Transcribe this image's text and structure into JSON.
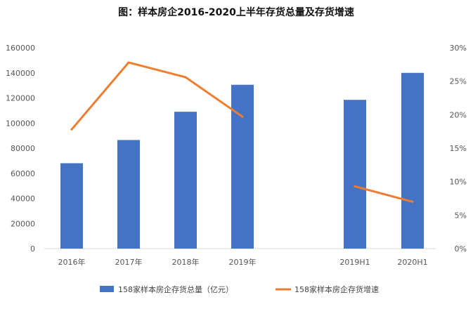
{
  "chart_data": {
    "type": "bar",
    "title": "图：样本房企2016-2020上半年存货总量及存货增速",
    "categories": [
      "2016年",
      "2017年",
      "2018年",
      "2019年",
      "",
      "2019H1",
      "2020H1"
    ],
    "series": [
      {
        "name": "158家样本房企存货总量（亿元）",
        "type": "bar",
        "axis": "left",
        "color": "#4472C4",
        "values": [
          68000,
          86500,
          109000,
          130500,
          null,
          118500,
          140000
        ]
      },
      {
        "name": "158家样本房企存货增速",
        "type": "line",
        "axis": "right",
        "color": "#ED7D31",
        "values": [
          17.8,
          27.8,
          25.6,
          19.7,
          null,
          9.3,
          7.0
        ]
      }
    ],
    "y_left": {
      "min": 0,
      "max": 160000,
      "ticks": [
        0,
        20000,
        40000,
        60000,
        80000,
        100000,
        120000,
        140000,
        160000
      ]
    },
    "y_right": {
      "min": 0,
      "max": 30,
      "ticks": [
        0,
        5,
        10,
        15,
        20,
        25,
        30
      ],
      "tick_labels": [
        "0%",
        "5%",
        "10%",
        "15%",
        "20%",
        "25%",
        "30%"
      ]
    },
    "grid": false,
    "legend_position": "bottom"
  }
}
